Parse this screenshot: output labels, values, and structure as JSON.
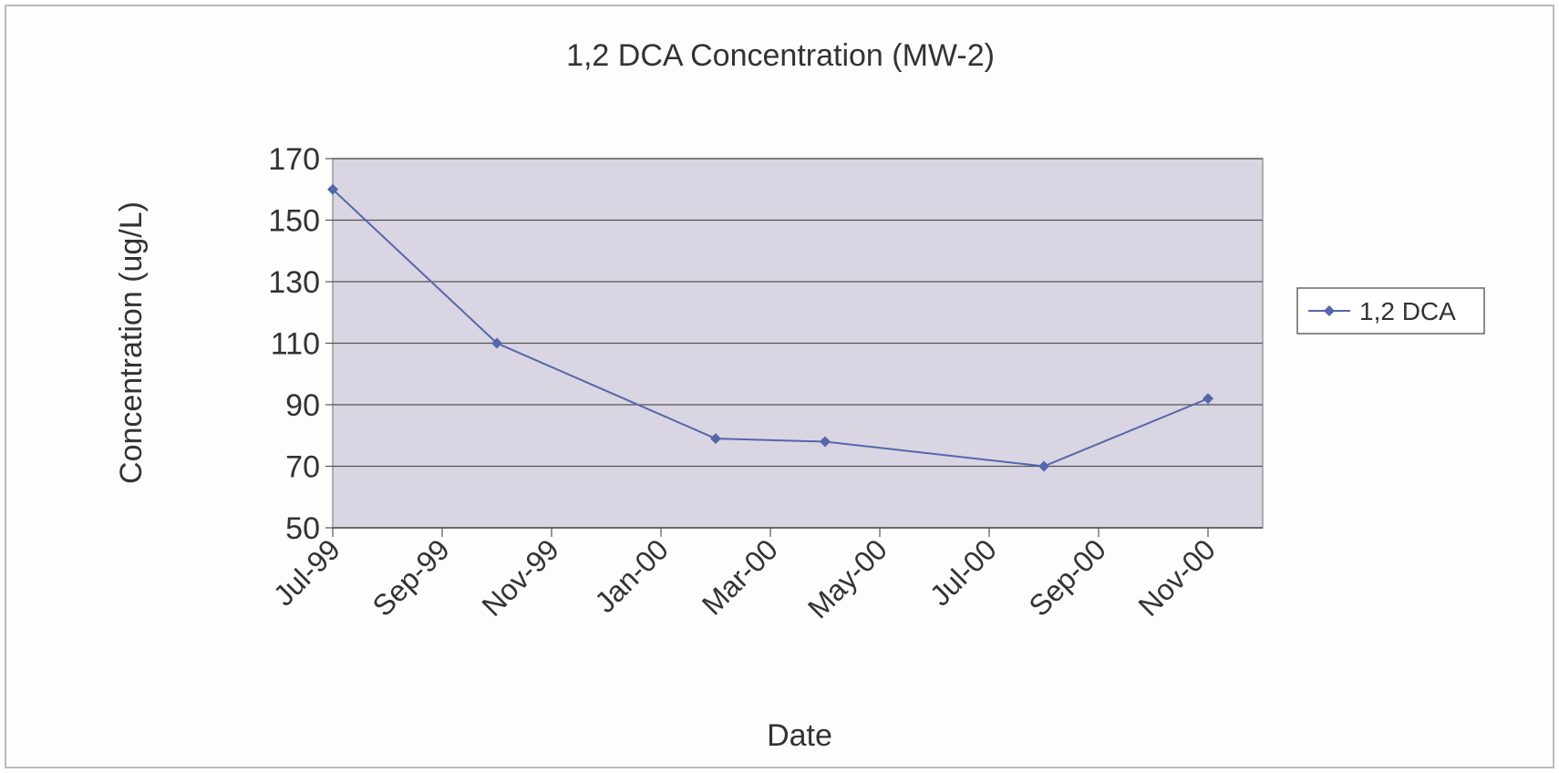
{
  "chart_data": {
    "type": "line",
    "title": "1,2 DCA Concentration (MW-2)",
    "x_label": "Date",
    "y_label": "Concentration (ug/L)",
    "x": [
      "1999-07",
      "1999-10",
      "2000-02",
      "2000-04",
      "2000-08",
      "2000-11"
    ],
    "series": [
      {
        "name": "1,2 DCA",
        "color": "#5566aa",
        "values": [
          160,
          110,
          79,
          78,
          70,
          92
        ]
      }
    ],
    "xlim": [
      "1999-07",
      "2000-12"
    ],
    "xticks": [
      {
        "value": "1999-07",
        "label": "Jul-99"
      },
      {
        "value": "1999-09",
        "label": "Sep-99"
      },
      {
        "value": "1999-11",
        "label": "Nov-99"
      },
      {
        "value": "2000-01",
        "label": "Jan-00"
      },
      {
        "value": "2000-03",
        "label": "Mar-00"
      },
      {
        "value": "2000-05",
        "label": "May-00"
      },
      {
        "value": "2000-07",
        "label": "Jul-00"
      },
      {
        "value": "2000-09",
        "label": "Sep-00"
      },
      {
        "value": "2000-11",
        "label": "Nov-00"
      }
    ],
    "ylim": [
      50,
      170
    ],
    "yticks": [
      50,
      70,
      90,
      110,
      130,
      150,
      170
    ],
    "grid": true,
    "legend": "right",
    "plot_background": "#d9d5e2"
  }
}
